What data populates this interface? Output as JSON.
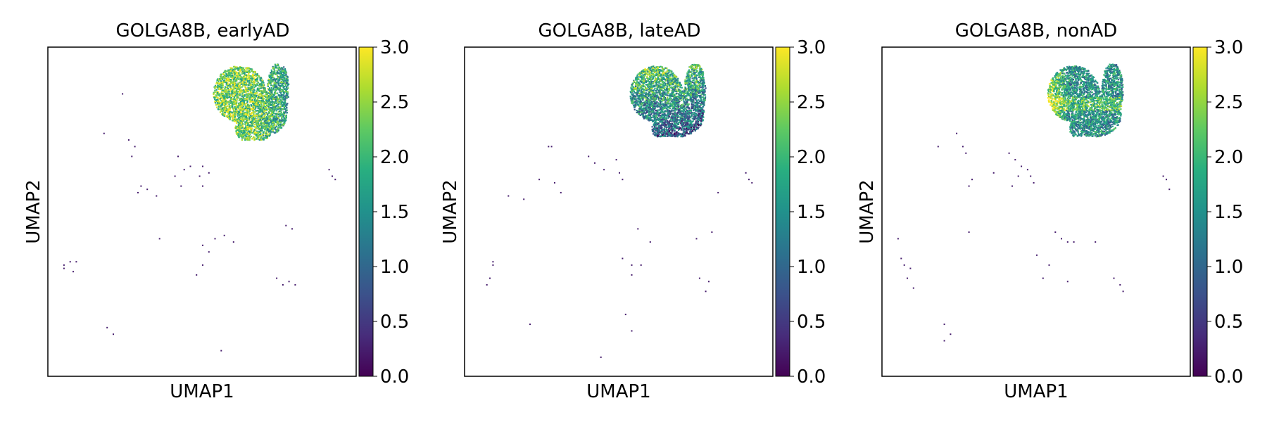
{
  "figure": {
    "panels": [
      {
        "title": "GOLGA8B, earlyAD",
        "xlabel": "UMAP1",
        "ylabel": "UMAP2"
      },
      {
        "title": "GOLGA8B, lateAD",
        "xlabel": "UMAP1",
        "ylabel": "UMAP2"
      },
      {
        "title": "GOLGA8B, nonAD",
        "xlabel": "UMAP1",
        "ylabel": "UMAP2"
      }
    ]
  },
  "chart_data": [
    {
      "type": "scatter",
      "title": "GOLGA8B, earlyAD",
      "xlabel": "UMAP1",
      "ylabel": "UMAP2",
      "axis_ticks": "none",
      "colorbar": {
        "colormap": "viridis",
        "range": [
          0.0,
          3.0
        ],
        "ticks": [
          "0.0",
          "0.5",
          "1.0",
          "1.5",
          "2.0",
          "2.5",
          "3.0"
        ]
      },
      "dense_cluster": {
        "x_range": [
          0.53,
          0.78
        ],
        "y_range": [
          0.72,
          0.95
        ],
        "dominant_values": "high (1.5-3.0)"
      },
      "sparse_points": [
        [
          0.26,
          0.72
        ],
        [
          0.28,
          0.7
        ],
        [
          0.27,
          0.67
        ],
        [
          0.3,
          0.58
        ],
        [
          0.32,
          0.57
        ],
        [
          0.29,
          0.56
        ],
        [
          0.42,
          0.67
        ],
        [
          0.44,
          0.63
        ],
        [
          0.41,
          0.61
        ],
        [
          0.46,
          0.64
        ],
        [
          0.43,
          0.58
        ],
        [
          0.5,
          0.64
        ],
        [
          0.49,
          0.61
        ],
        [
          0.52,
          0.62
        ],
        [
          0.5,
          0.58
        ],
        [
          0.91,
          0.63
        ],
        [
          0.92,
          0.61
        ],
        [
          0.93,
          0.6
        ],
        [
          0.05,
          0.34
        ],
        [
          0.07,
          0.35
        ],
        [
          0.09,
          0.35
        ],
        [
          0.08,
          0.32
        ],
        [
          0.05,
          0.33
        ],
        [
          0.36,
          0.42
        ],
        [
          0.5,
          0.4
        ],
        [
          0.54,
          0.42
        ],
        [
          0.57,
          0.43
        ],
        [
          0.6,
          0.41
        ],
        [
          0.52,
          0.38
        ],
        [
          0.5,
          0.34
        ],
        [
          0.48,
          0.31
        ],
        [
          0.77,
          0.46
        ],
        [
          0.79,
          0.45
        ],
        [
          0.74,
          0.3
        ],
        [
          0.76,
          0.28
        ],
        [
          0.78,
          0.29
        ],
        [
          0.8,
          0.28
        ],
        [
          0.19,
          0.15
        ],
        [
          0.21,
          0.13
        ],
        [
          0.56,
          0.08
        ],
        [
          0.24,
          0.86
        ],
        [
          0.18,
          0.74
        ],
        [
          0.35,
          0.55
        ]
      ]
    },
    {
      "type": "scatter",
      "title": "GOLGA8B, lateAD",
      "xlabel": "UMAP1",
      "ylabel": "UMAP2",
      "axis_ticks": "none",
      "colorbar": {
        "colormap": "viridis",
        "range": [
          0.0,
          3.0
        ],
        "ticks": [
          "0.0",
          "0.5",
          "1.0",
          "1.5",
          "2.0",
          "2.5",
          "3.0"
        ]
      },
      "dense_cluster": {
        "x_range": [
          0.53,
          0.79
        ],
        "y_range": [
          0.73,
          0.95
        ],
        "dominant_values": "mixed, lower toward bottom (0.0-3.0)"
      },
      "sparse_points": [
        [
          0.27,
          0.7
        ],
        [
          0.4,
          0.67
        ],
        [
          0.42,
          0.65
        ],
        [
          0.45,
          0.63
        ],
        [
          0.49,
          0.66
        ],
        [
          0.5,
          0.62
        ],
        [
          0.51,
          0.6
        ],
        [
          0.24,
          0.6
        ],
        [
          0.29,
          0.59
        ],
        [
          0.31,
          0.56
        ],
        [
          0.19,
          0.54
        ],
        [
          0.14,
          0.55
        ],
        [
          0.91,
          0.62
        ],
        [
          0.92,
          0.6
        ],
        [
          0.93,
          0.59
        ],
        [
          0.82,
          0.56
        ],
        [
          0.09,
          0.35
        ],
        [
          0.09,
          0.34
        ],
        [
          0.08,
          0.3
        ],
        [
          0.07,
          0.28
        ],
        [
          0.56,
          0.45
        ],
        [
          0.6,
          0.41
        ],
        [
          0.51,
          0.36
        ],
        [
          0.54,
          0.34
        ],
        [
          0.57,
          0.34
        ],
        [
          0.75,
          0.42
        ],
        [
          0.8,
          0.44
        ],
        [
          0.76,
          0.3
        ],
        [
          0.79,
          0.29
        ],
        [
          0.78,
          0.26
        ],
        [
          0.21,
          0.16
        ],
        [
          0.52,
          0.19
        ],
        [
          0.54,
          0.14
        ],
        [
          0.44,
          0.06
        ],
        [
          0.28,
          0.7
        ],
        [
          0.54,
          0.31
        ]
      ]
    },
    {
      "type": "scatter",
      "title": "GOLGA8B, nonAD",
      "xlabel": "UMAP1",
      "ylabel": "UMAP2",
      "axis_ticks": "none",
      "colorbar": {
        "colormap": "viridis",
        "range": [
          0.0,
          3.0
        ],
        "ticks": [
          "0.0",
          "0.5",
          "1.0",
          "1.5",
          "2.0",
          "2.5",
          "3.0"
        ]
      },
      "dense_cluster": {
        "x_range": [
          0.53,
          0.78
        ],
        "y_range": [
          0.73,
          0.95
        ],
        "dominant_values": "high on left, mid-low elsewhere (0.5-3.0)"
      },
      "sparse_points": [
        [
          0.24,
          0.74
        ],
        [
          0.26,
          0.7
        ],
        [
          0.27,
          0.68
        ],
        [
          0.29,
          0.6
        ],
        [
          0.28,
          0.58
        ],
        [
          0.41,
          0.68
        ],
        [
          0.43,
          0.66
        ],
        [
          0.45,
          0.64
        ],
        [
          0.44,
          0.61
        ],
        [
          0.42,
          0.58
        ],
        [
          0.47,
          0.63
        ],
        [
          0.48,
          0.61
        ],
        [
          0.49,
          0.59
        ],
        [
          0.91,
          0.61
        ],
        [
          0.92,
          0.6
        ],
        [
          0.93,
          0.57
        ],
        [
          0.05,
          0.42
        ],
        [
          0.06,
          0.36
        ],
        [
          0.07,
          0.34
        ],
        [
          0.09,
          0.33
        ],
        [
          0.08,
          0.3
        ],
        [
          0.28,
          0.44
        ],
        [
          0.56,
          0.44
        ],
        [
          0.58,
          0.42
        ],
        [
          0.6,
          0.41
        ],
        [
          0.62,
          0.41
        ],
        [
          0.5,
          0.37
        ],
        [
          0.54,
          0.34
        ],
        [
          0.69,
          0.41
        ],
        [
          0.75,
          0.3
        ],
        [
          0.77,
          0.28
        ],
        [
          0.78,
          0.26
        ],
        [
          0.2,
          0.16
        ],
        [
          0.22,
          0.13
        ],
        [
          0.2,
          0.11
        ],
        [
          0.6,
          0.29
        ],
        [
          0.18,
          0.7
        ],
        [
          0.36,
          0.62
        ],
        [
          0.1,
          0.27
        ],
        [
          0.52,
          0.3
        ]
      ]
    }
  ]
}
